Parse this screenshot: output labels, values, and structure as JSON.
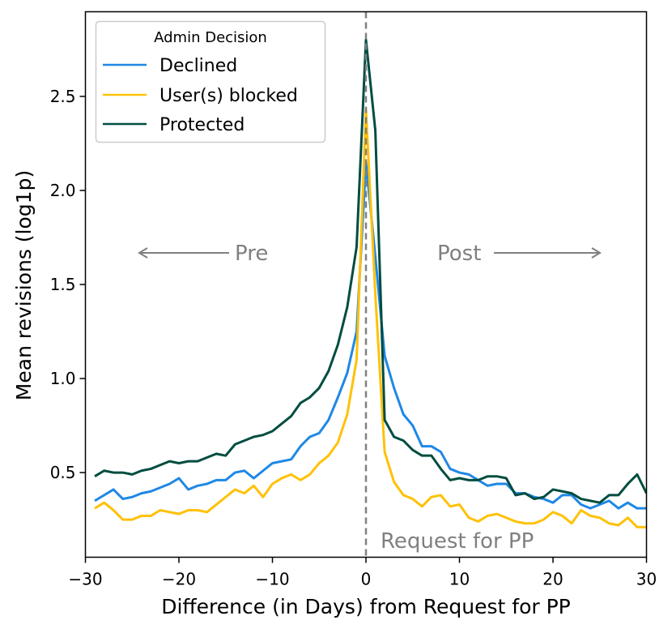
{
  "chart_data": {
    "type": "line",
    "xlabel": "Difference (in Days) from Request for PP",
    "ylabel": "Mean revisions (log1p)",
    "xlim": [
      -30,
      30
    ],
    "ylim": [
      0.05,
      2.95
    ],
    "xticks": [
      -30,
      -20,
      -10,
      0,
      10,
      20,
      30
    ],
    "xtick_labels": [
      "−30",
      "−20",
      "−10",
      "0",
      "10",
      "20",
      "30"
    ],
    "yticks": [
      0.5,
      1.0,
      1.5,
      2.0,
      2.5
    ],
    "ytick_labels": [
      "0.5",
      "1.0",
      "1.5",
      "2.0",
      "2.5"
    ],
    "legend": {
      "title": "Admin Decision",
      "position": "top-left"
    },
    "annotations": {
      "pre": "Pre",
      "post": "Post",
      "request": "Request for PP",
      "vline_x": 0
    },
    "x": [
      -29,
      -28,
      -27,
      -26,
      -25,
      -24,
      -23,
      -22,
      -21,
      -20,
      -19,
      -18,
      -17,
      -16,
      -15,
      -14,
      -13,
      -12,
      -11,
      -10,
      -9,
      -8,
      -7,
      -6,
      -5,
      -4,
      -3,
      -2,
      -1,
      0,
      1,
      2,
      3,
      4,
      5,
      6,
      7,
      8,
      9,
      10,
      11,
      12,
      13,
      14,
      15,
      16,
      17,
      18,
      19,
      20,
      21,
      22,
      23,
      24,
      25,
      26,
      27,
      28,
      29,
      30
    ],
    "series": [
      {
        "name": "Declined",
        "color": "#1f88e5",
        "values": [
          0.35,
          0.38,
          0.41,
          0.36,
          0.37,
          0.39,
          0.4,
          0.42,
          0.44,
          0.47,
          0.41,
          0.43,
          0.44,
          0.46,
          0.46,
          0.5,
          0.51,
          0.47,
          0.51,
          0.55,
          0.56,
          0.57,
          0.64,
          0.69,
          0.71,
          0.78,
          0.9,
          1.03,
          1.25,
          2.15,
          1.65,
          1.12,
          0.95,
          0.81,
          0.75,
          0.64,
          0.64,
          0.61,
          0.52,
          0.5,
          0.49,
          0.46,
          0.43,
          0.44,
          0.44,
          0.39,
          0.39,
          0.37,
          0.36,
          0.34,
          0.38,
          0.38,
          0.33,
          0.31,
          0.33,
          0.35,
          0.31,
          0.34,
          0.31,
          0.31
        ]
      },
      {
        "name": "User(s) blocked",
        "color": "#ffc107",
        "values": [
          0.31,
          0.34,
          0.3,
          0.25,
          0.25,
          0.27,
          0.27,
          0.3,
          0.29,
          0.28,
          0.3,
          0.3,
          0.29,
          0.33,
          0.37,
          0.41,
          0.39,
          0.43,
          0.37,
          0.44,
          0.47,
          0.49,
          0.46,
          0.49,
          0.55,
          0.59,
          0.66,
          0.81,
          1.1,
          2.43,
          1.45,
          0.61,
          0.45,
          0.38,
          0.36,
          0.32,
          0.37,
          0.38,
          0.32,
          0.33,
          0.26,
          0.24,
          0.27,
          0.28,
          0.26,
          0.24,
          0.23,
          0.23,
          0.25,
          0.29,
          0.27,
          0.23,
          0.3,
          0.27,
          0.26,
          0.23,
          0.22,
          0.26,
          0.21,
          0.21
        ]
      },
      {
        "name": "Protected",
        "color": "#004d40",
        "values": [
          0.48,
          0.51,
          0.5,
          0.5,
          0.49,
          0.51,
          0.52,
          0.54,
          0.56,
          0.55,
          0.56,
          0.56,
          0.58,
          0.6,
          0.59,
          0.65,
          0.67,
          0.69,
          0.7,
          0.72,
          0.76,
          0.8,
          0.87,
          0.9,
          0.95,
          1.04,
          1.18,
          1.38,
          1.7,
          2.8,
          2.32,
          0.78,
          0.69,
          0.67,
          0.62,
          0.59,
          0.59,
          0.52,
          0.46,
          0.47,
          0.46,
          0.46,
          0.48,
          0.48,
          0.47,
          0.38,
          0.39,
          0.36,
          0.37,
          0.41,
          0.4,
          0.39,
          0.36,
          0.35,
          0.34,
          0.38,
          0.38,
          0.44,
          0.49,
          0.39
        ]
      }
    ]
  }
}
